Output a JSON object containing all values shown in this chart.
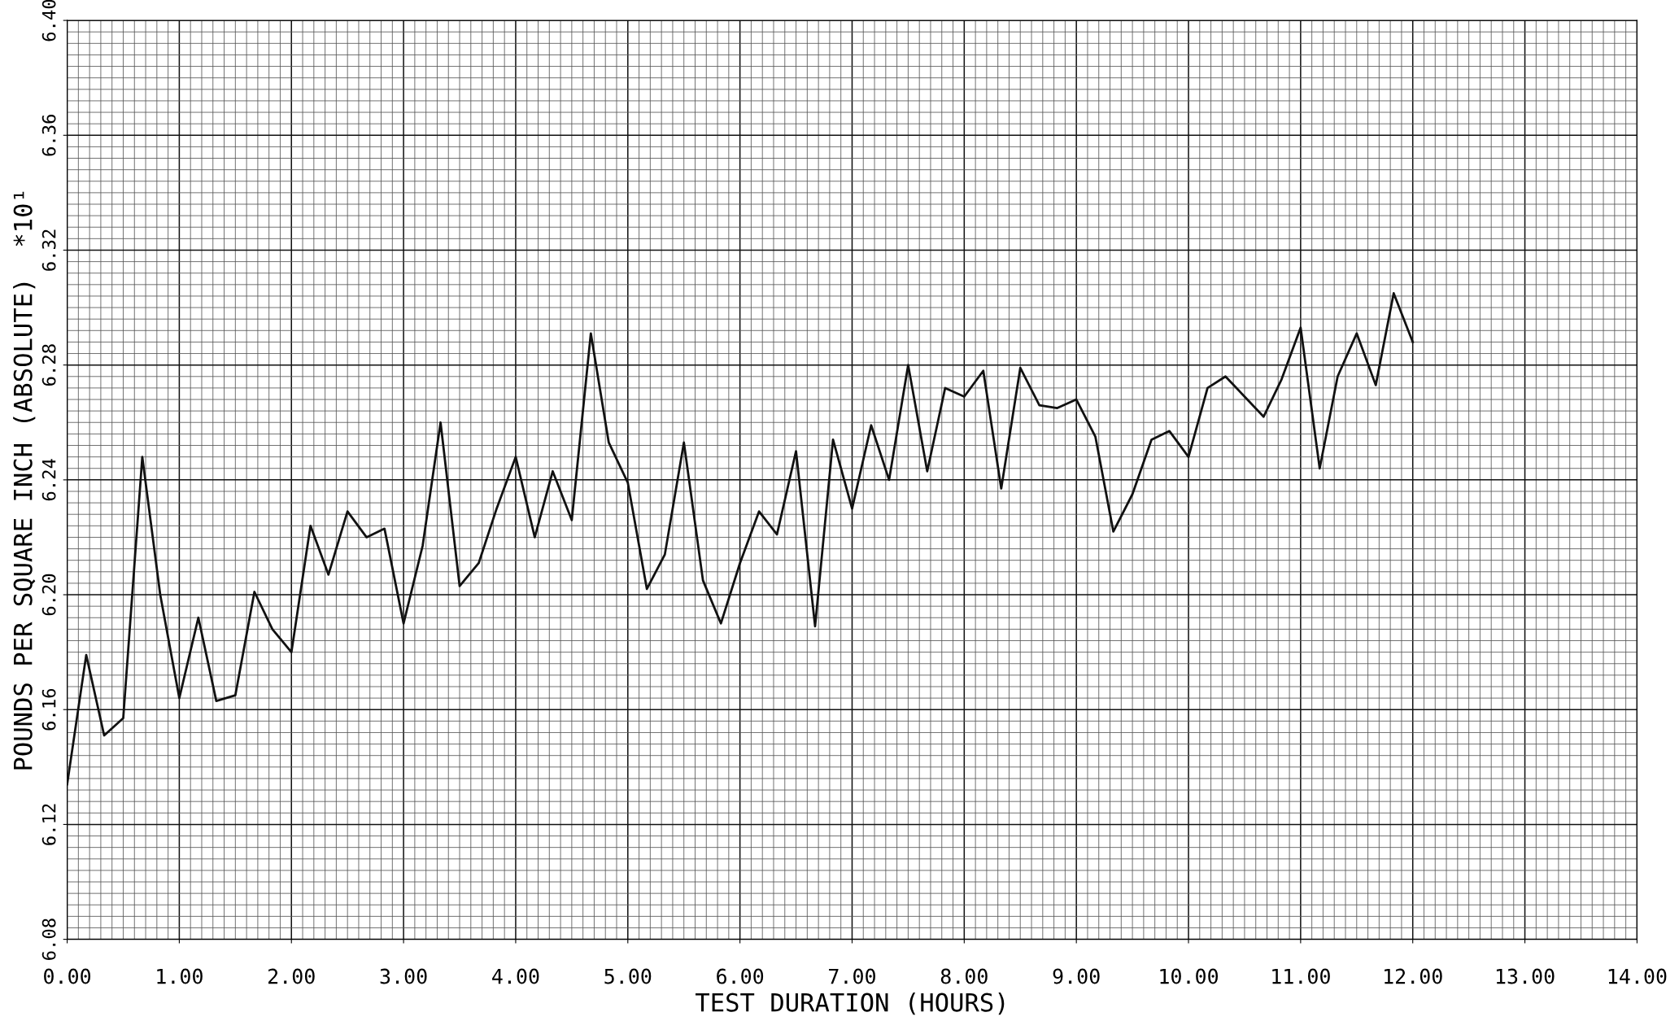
{
  "chart_data": {
    "type": "line",
    "xlabel": "TEST DURATION (HOURS)",
    "ylabel": "POUNDS PER SQUARE INCH (ABSOLUTE)  *10¹",
    "x": [
      0,
      0.17,
      0.33,
      0.5,
      0.67,
      0.83,
      1.0,
      1.17,
      1.33,
      1.5,
      1.67,
      1.83,
      2.0,
      2.17,
      2.33,
      2.5,
      2.67,
      2.83,
      3.0,
      3.17,
      3.33,
      3.5,
      3.67,
      3.83,
      4.0,
      4.17,
      4.33,
      4.5,
      4.67,
      4.83,
      5.0,
      5.17,
      5.33,
      5.5,
      5.67,
      5.83,
      6.0,
      6.17,
      6.33,
      6.5,
      6.67,
      6.83,
      7.0,
      7.17,
      7.33,
      7.5,
      7.67,
      7.83,
      8.0,
      8.17,
      8.33,
      8.5,
      8.67,
      8.83,
      9.0,
      9.17,
      9.33,
      9.5,
      9.67,
      9.83,
      10.0,
      10.17,
      10.33,
      10.5,
      10.67,
      10.83,
      11.0,
      11.17,
      11.33,
      11.5,
      11.67,
      11.83,
      12.0
    ],
    "series": [
      {
        "color": "#111111",
        "values": [
          6.134,
          6.179,
          6.151,
          6.157,
          6.248,
          6.2,
          6.164,
          6.192,
          6.163,
          6.165,
          6.201,
          6.188,
          6.18,
          6.224,
          6.207,
          6.229,
          6.22,
          6.223,
          6.19,
          6.217,
          6.26,
          6.203,
          6.211,
          6.23,
          6.248,
          6.22,
          6.243,
          6.226,
          6.291,
          6.253,
          6.239,
          6.202,
          6.214,
          6.253,
          6.205,
          6.19,
          6.211,
          6.229,
          6.221,
          6.25,
          6.189,
          6.254,
          6.23,
          6.259,
          6.24,
          6.28,
          6.243,
          6.272,
          6.269,
          6.278,
          6.237,
          6.279,
          6.266,
          6.265,
          6.268,
          6.255,
          6.222,
          6.235,
          6.254,
          6.257,
          6.248,
          6.272,
          6.276,
          6.269,
          6.262,
          6.275,
          6.293,
          6.244,
          6.276,
          6.291,
          6.273,
          6.305,
          6.288
        ]
      }
    ],
    "xlim": [
      0,
      14
    ],
    "ylim": [
      6.08,
      6.4
    ],
    "xticks": [
      {
        "value": 0,
        "label": "0.00"
      },
      {
        "value": 1,
        "label": "1.00"
      },
      {
        "value": 2,
        "label": "2.00"
      },
      {
        "value": 3,
        "label": "3.00"
      },
      {
        "value": 4,
        "label": "4.00"
      },
      {
        "value": 5,
        "label": "5.00"
      },
      {
        "value": 6,
        "label": "6.00"
      },
      {
        "value": 7,
        "label": "7.00"
      },
      {
        "value": 8,
        "label": "8.00"
      },
      {
        "value": 9,
        "label": "9.00"
      },
      {
        "value": 10,
        "label": "10.00"
      },
      {
        "value": 11,
        "label": "11.00"
      },
      {
        "value": 12,
        "label": "12.00"
      },
      {
        "value": 13,
        "label": "13.00"
      },
      {
        "value": 14,
        "label": "14.00"
      }
    ],
    "yticks": [
      {
        "value": 6.08,
        "label": "6.08"
      },
      {
        "value": 6.12,
        "label": "6.12"
      },
      {
        "value": 6.16,
        "label": "6.16"
      },
      {
        "value": 6.2,
        "label": "6.20"
      },
      {
        "value": 6.24,
        "label": "6.24"
      },
      {
        "value": 6.28,
        "label": "6.28"
      },
      {
        "value": 6.32,
        "label": "6.32"
      },
      {
        "value": 6.36,
        "label": "6.36"
      },
      {
        "value": 6.4,
        "label": "6.40"
      }
    ],
    "grid": true,
    "marker": "none",
    "line_style": "solid"
  }
}
